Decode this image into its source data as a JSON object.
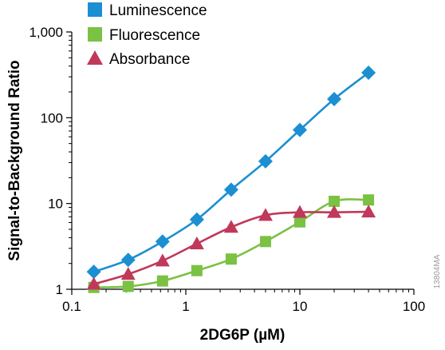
{
  "chart_data": {
    "type": "line",
    "xlabel": "2DG6P (µM)",
    "ylabel": "Signal-to-Background Ratio",
    "x_scale": "log",
    "y_scale": "log",
    "xlim": [
      0.1,
      100
    ],
    "ylim": [
      1,
      1000
    ],
    "x_ticks": [
      0.1,
      1,
      10,
      100
    ],
    "x_tick_labels": [
      "0.1",
      "1",
      "10",
      "100"
    ],
    "y_ticks": [
      1,
      10,
      100,
      1000
    ],
    "y_tick_labels": [
      "1",
      "10",
      "100",
      "1,000"
    ],
    "grid": false,
    "legend_position": "top-left",
    "watermark": "13804MA",
    "x": [
      0.156,
      0.3125,
      0.625,
      1.25,
      2.5,
      5,
      10,
      20,
      40
    ],
    "series": [
      {
        "name": "Luminescence",
        "color": "#1b8fd2",
        "marker": "diamond",
        "values": [
          1.6,
          2.2,
          3.6,
          6.5,
          14.5,
          31,
          72,
          165,
          335
        ]
      },
      {
        "name": "Fluorescence",
        "color": "#7bc143",
        "marker": "square",
        "values": [
          1.05,
          1.08,
          1.25,
          1.65,
          2.25,
          3.6,
          6.1,
          10.6,
          11.0
        ]
      },
      {
        "name": "Absorbance",
        "color": "#c0395a",
        "marker": "triangle",
        "values": [
          1.15,
          1.5,
          2.15,
          3.4,
          5.3,
          7.3,
          7.9,
          7.9,
          8.0
        ]
      }
    ]
  }
}
